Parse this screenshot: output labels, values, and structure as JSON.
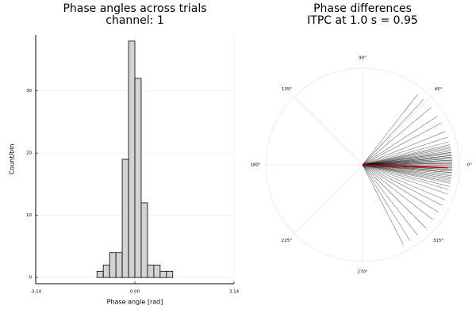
{
  "chart_data": [
    {
      "type": "histogram",
      "title": "Phase angles across trials",
      "subtitle": "channel: 1",
      "x_label": "Phase angle [rad]",
      "y_label": "Count/bin",
      "bins": [
        -1.2,
        -1.0,
        -0.8,
        -0.6,
        -0.4,
        -0.2,
        0.0,
        0.2,
        0.4,
        0.6,
        0.8,
        1.0,
        1.2
      ],
      "values": [
        1,
        2,
        4,
        4,
        19,
        38,
        32,
        12,
        2,
        2,
        1,
        1
      ],
      "color": "#d3d3d3",
      "xlim": [
        -3.14,
        3.14
      ],
      "xticks": [
        -3.14,
        {
          "value": 0,
          "label": "0.00"
        },
        3.14
      ],
      "ylim": [
        -1,
        39
      ],
      "yticks": [
        0,
        10,
        20,
        30
      ],
      "grid": true
    },
    {
      "type": "polar",
      "title": "Phase differences",
      "subtitle": "ITPC at 1.0 s = 0.95",
      "values": [
        52,
        47,
        40,
        33,
        28,
        22,
        18,
        15,
        13,
        12,
        11,
        10,
        9,
        8,
        8,
        7,
        6,
        6,
        5,
        5,
        4,
        4,
        3,
        3,
        2,
        2,
        1,
        1,
        0,
        0,
        -1,
        -1,
        -2,
        -2,
        -3,
        -3,
        -4,
        -4,
        -5,
        -5,
        -6,
        -7,
        -8,
        -9,
        -10,
        -11,
        -12,
        -14,
        -16,
        -19,
        -23,
        -27,
        -32,
        -38,
        -45,
        -52,
        -58,
        -63
      ],
      "color": "#000000",
      "resultant": {
        "angle": -2,
        "length": 0.95,
        "color": "#c00000"
      },
      "rlim": [
        0,
        1.08
      ],
      "thetaticks": [
        {
          "value": 0,
          "label": "0°"
        },
        {
          "value": 45,
          "label": "45°"
        },
        {
          "value": 90,
          "label": "90°"
        },
        {
          "value": 135,
          "label": "135°"
        },
        {
          "value": 180,
          "label": "180°"
        },
        {
          "value": 225,
          "label": "225°"
        },
        {
          "value": 270,
          "label": "270°"
        },
        {
          "value": 315,
          "label": "315°"
        }
      ],
      "grid": true
    }
  ]
}
